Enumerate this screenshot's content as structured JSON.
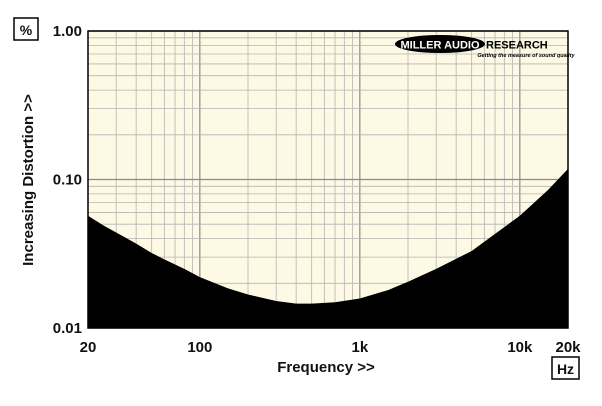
{
  "chart_data": {
    "type": "area",
    "title": "",
    "xlabel": "Frequency >>",
    "ylabel": "Increasing Distortion >>",
    "x_unit": "Hz",
    "y_unit": "%",
    "x_scale": "log",
    "y_scale": "log",
    "xlim": [
      20,
      20000
    ],
    "ylim": [
      0.01,
      1.0
    ],
    "x_tick_labels": [
      {
        "value": 20,
        "label": "20"
      },
      {
        "value": 100,
        "label": "100"
      },
      {
        "value": 1000,
        "label": "1k"
      },
      {
        "value": 10000,
        "label": "10k"
      },
      {
        "value": 20000,
        "label": "20k"
      }
    ],
    "y_tick_labels": [
      {
        "value": 1.0,
        "label": "1.00"
      },
      {
        "value": 0.1,
        "label": "0.10"
      },
      {
        "value": 0.01,
        "label": "0.01"
      }
    ],
    "grid": true,
    "colors": {
      "plot_background": "#fdf9e4",
      "fill": "#000000",
      "grid": "#9a9a9a",
      "frame": "#000000"
    },
    "series": [
      {
        "x": [
          20,
          25,
          30,
          40,
          50,
          60,
          80,
          100,
          150,
          200,
          300,
          400,
          500,
          700,
          1000,
          1500,
          2000,
          3000,
          5000,
          7000,
          10000,
          15000,
          20000
        ],
        "values": [
          0.057,
          0.049,
          0.044,
          0.037,
          0.032,
          0.029,
          0.025,
          0.022,
          0.0185,
          0.0168,
          0.0152,
          0.0146,
          0.0146,
          0.0149,
          0.0158,
          0.018,
          0.0205,
          0.025,
          0.033,
          0.043,
          0.057,
          0.085,
          0.118
        ]
      }
    ]
  },
  "logo": {
    "brand_left": "MILLER AUDIO",
    "brand_right": "RESEARCH",
    "tagline": "Getting the measure of sound quality"
  }
}
